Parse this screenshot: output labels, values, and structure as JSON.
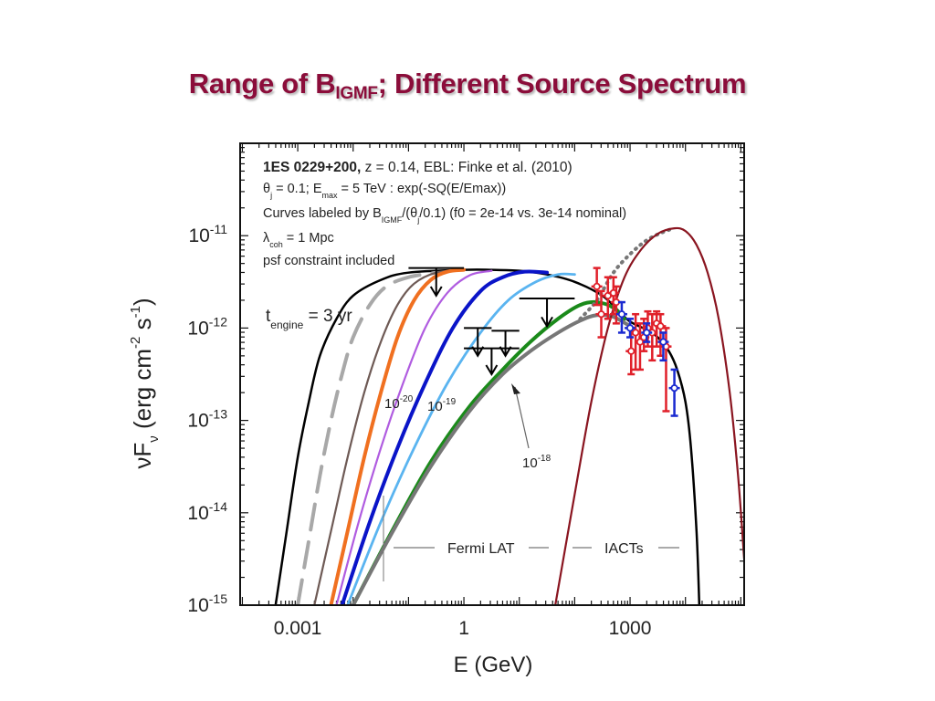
{
  "slide": {
    "title_main": "Range of B",
    "title_sub": "IGMF",
    "title_rest": "; Different Source Spectrum"
  },
  "chart_data": {
    "type": "line",
    "title": "",
    "xlabel": "E (GeV)",
    "ylabel_main": "νF",
    "ylabel_sub": "ν",
    "ylabel_units": " (erg cm",
    "ylabel_exp1": "-2",
    "ylabel_mid": " s",
    "ylabel_exp2": "-1",
    "ylabel_end": ")",
    "xscale": "log",
    "yscale": "log",
    "xlim_log10": [
      -4.04,
      5.06
    ],
    "ylim_log10": [
      -15,
      -10
    ],
    "x_ticks": [
      {
        "log10": -3,
        "label": "0.001"
      },
      {
        "log10": 0,
        "label": "1"
      },
      {
        "log10": 3,
        "label": "1000"
      }
    ],
    "y_ticks": [
      {
        "log10": -11,
        "base": "10",
        "exp": "-11"
      },
      {
        "log10": -12,
        "base": "10",
        "exp": "-12"
      },
      {
        "log10": -13,
        "base": "10",
        "exp": "-13"
      },
      {
        "log10": -14,
        "base": "10",
        "exp": "-14"
      },
      {
        "log10": -15,
        "base": "10",
        "exp": "-15"
      }
    ],
    "annotations": {
      "line1_bold": "1ES 0229+200,",
      "line1_rest": " z = 0.14,   EBL: Finke et al. (2010)",
      "line2_a": "θ",
      "line2_a_sub": "j",
      "line2_b": " = 0.1; E",
      "line2_b_sub": "max",
      "line2_c": " = 5 TeV : exp(-SQ(E/Emax))",
      "line3_a": "Curves labeled by B",
      "line3_a_sub": "IGMF",
      "line3_b": "/(θ",
      "line3_b_sub": "j",
      "line3_c": "/0.1)  (f0 = 2e-14 vs. 3e-14 nominal)",
      "line4_a": "λ",
      "line4_a_sub": "coh",
      "line4_b": " = 1 Mpc",
      "line5": "psf constraint included",
      "engine_a": "t",
      "engine_sub": "engine",
      "engine_b": " = 3 yr",
      "engine_color": "#e0306a",
      "label_m20_base": "10",
      "label_m20_exp": "-20",
      "label_m19_base": "10",
      "label_m19_exp": "-19",
      "label_m18_base": "10",
      "label_m18_exp": "-18",
      "fermi_label": "Fermi LAT",
      "iacts_label": "IACTs"
    },
    "series": [
      {
        "name": "B=1e-20 (envelope, black)",
        "color": "#000000",
        "width": 2.5,
        "dash": "",
        "points": [
          [
            -3.4,
            -15
          ],
          [
            -3.2,
            -14.2
          ],
          [
            -3.0,
            -13.4
          ],
          [
            -2.8,
            -12.8
          ],
          [
            -2.6,
            -12.3
          ],
          [
            -2.3,
            -11.9
          ],
          [
            -2.0,
            -11.65
          ],
          [
            -1.5,
            -11.48
          ],
          [
            -1.0,
            -11.4
          ],
          [
            0,
            -11.37
          ],
          [
            0.5,
            -11.37
          ],
          [
            1.0,
            -11.38
          ],
          [
            1.5,
            -11.42
          ],
          [
            2.0,
            -11.5
          ],
          [
            2.5,
            -11.65
          ],
          [
            2.8,
            -11.82
          ],
          [
            3.0,
            -11.93
          ],
          [
            3.3,
            -12.02
          ],
          [
            3.5,
            -12.1
          ],
          [
            3.7,
            -12.25
          ],
          [
            3.85,
            -12.45
          ],
          [
            4.0,
            -12.8
          ],
          [
            4.1,
            -13.3
          ],
          [
            4.2,
            -14.2
          ],
          [
            4.25,
            -15
          ]
        ]
      },
      {
        "name": "B=1e-20 (grey dashed)",
        "color": "#a8a8a8",
        "width": 4,
        "dash": "28 14",
        "points": [
          [
            -3.0,
            -15
          ],
          [
            -2.8,
            -14.3
          ],
          [
            -2.6,
            -13.6
          ],
          [
            -2.4,
            -13.0
          ],
          [
            -2.2,
            -12.5
          ],
          [
            -2.0,
            -12.1
          ],
          [
            -1.7,
            -11.75
          ],
          [
            -1.4,
            -11.55
          ],
          [
            -1.0,
            -11.45
          ],
          [
            -0.5,
            -11.4
          ]
        ]
      },
      {
        "name": "B=1e-19 (brown)",
        "color": "#6e5a55",
        "width": 2.2,
        "dash": "",
        "points": [
          [
            -2.7,
            -15
          ],
          [
            -2.4,
            -14.2
          ],
          [
            -2.1,
            -13.4
          ],
          [
            -1.8,
            -12.7
          ],
          [
            -1.5,
            -12.15
          ],
          [
            -1.2,
            -11.75
          ],
          [
            -0.9,
            -11.52
          ],
          [
            -0.5,
            -11.4
          ],
          [
            0,
            -11.37
          ]
        ]
      },
      {
        "name": "orange",
        "color": "#f07020",
        "width": 4,
        "dash": "",
        "points": [
          [
            -2.4,
            -15
          ],
          [
            -2.1,
            -14.2
          ],
          [
            -1.8,
            -13.4
          ],
          [
            -1.5,
            -12.7
          ],
          [
            -1.2,
            -12.1
          ],
          [
            -0.9,
            -11.7
          ],
          [
            -0.6,
            -11.48
          ],
          [
            -0.3,
            -11.39
          ],
          [
            0,
            -11.37
          ]
        ]
      },
      {
        "name": "purple",
        "color": "#b05ce0",
        "width": 2.2,
        "dash": "",
        "points": [
          [
            -2.3,
            -15
          ],
          [
            -1.9,
            -14.1
          ],
          [
            -1.5,
            -13.3
          ],
          [
            -1.1,
            -12.6
          ],
          [
            -0.7,
            -12.0
          ],
          [
            -0.3,
            -11.62
          ],
          [
            0.1,
            -11.43
          ],
          [
            0.5,
            -11.38
          ]
        ]
      },
      {
        "name": "blue",
        "color": "#0a14c8",
        "width": 4,
        "dash": "",
        "points": [
          [
            -2.2,
            -15
          ],
          [
            -1.7,
            -14.1
          ],
          [
            -1.2,
            -13.3
          ],
          [
            -0.7,
            -12.6
          ],
          [
            -0.2,
            -12.0
          ],
          [
            0.3,
            -11.6
          ],
          [
            0.7,
            -11.45
          ],
          [
            1.1,
            -11.39
          ],
          [
            1.5,
            -11.4
          ]
        ]
      },
      {
        "name": "light blue",
        "color": "#5ab4f0",
        "width": 2.8,
        "dash": "",
        "points": [
          [
            -2.1,
            -15
          ],
          [
            -1.5,
            -14.1
          ],
          [
            -0.9,
            -13.3
          ],
          [
            -0.3,
            -12.6
          ],
          [
            0.3,
            -12.05
          ],
          [
            0.8,
            -11.7
          ],
          [
            1.3,
            -11.5
          ],
          [
            1.7,
            -11.42
          ],
          [
            2.0,
            -11.42
          ]
        ]
      },
      {
        "name": "B=1e-18 (green)",
        "color": "#1a8a1a",
        "width": 4,
        "dash": "",
        "points": [
          [
            -2.0,
            -15
          ],
          [
            -1.3,
            -14.2
          ],
          [
            -0.6,
            -13.45
          ],
          [
            0.1,
            -12.85
          ],
          [
            0.7,
            -12.45
          ],
          [
            1.2,
            -12.15
          ],
          [
            1.7,
            -11.9
          ],
          [
            2.1,
            -11.75
          ],
          [
            2.4,
            -11.72
          ],
          [
            2.7,
            -11.78
          ],
          [
            2.9,
            -11.9
          ]
        ]
      },
      {
        "name": "grey (bottom)",
        "color": "#777777",
        "width": 4,
        "dash": "",
        "points": [
          [
            -2.0,
            -15
          ],
          [
            -1.3,
            -14.22
          ],
          [
            -0.6,
            -13.5
          ],
          [
            0.1,
            -12.9
          ],
          [
            0.7,
            -12.5
          ],
          [
            1.2,
            -12.25
          ],
          [
            1.7,
            -12.05
          ],
          [
            2.1,
            -11.92
          ],
          [
            2.4,
            -11.86
          ],
          [
            2.7,
            -11.88
          ],
          [
            3.0,
            -11.98
          ]
        ]
      },
      {
        "name": "intrinsic (dotted grey)",
        "color": "#777777",
        "width": 4,
        "dash": "1 6",
        "points": [
          [
            2.1,
            -11.9
          ],
          [
            2.4,
            -11.7
          ],
          [
            2.7,
            -11.4
          ],
          [
            3.0,
            -11.2
          ],
          [
            3.3,
            -11.05
          ],
          [
            3.6,
            -10.96
          ],
          [
            3.8,
            -10.92
          ]
        ]
      },
      {
        "name": "intrinsic (dark red)",
        "color": "#8a1520",
        "width": 2.2,
        "dash": "",
        "points": [
          [
            1.65,
            -15
          ],
          [
            2.0,
            -13.8
          ],
          [
            2.3,
            -12.8
          ],
          [
            2.6,
            -12.0
          ],
          [
            2.9,
            -11.45
          ],
          [
            3.2,
            -11.15
          ],
          [
            3.5,
            -10.98
          ],
          [
            3.8,
            -10.92
          ],
          [
            4.0,
            -10.95
          ],
          [
            4.2,
            -11.1
          ],
          [
            4.4,
            -11.4
          ],
          [
            4.6,
            -11.9
          ],
          [
            4.8,
            -12.7
          ],
          [
            4.95,
            -13.6
          ],
          [
            5.06,
            -14.5
          ]
        ]
      }
    ],
    "upper_limits": [
      {
        "x_lo": -1.0,
        "x_hi": 0.0,
        "y": -11.35,
        "arrow_x": -0.5,
        "arrow_to": -11.65
      },
      {
        "x_lo": 0.0,
        "x_hi": 0.5,
        "y": -12.0,
        "arrow_x": 0.25,
        "arrow_to": -12.3
      },
      {
        "x_lo": 0.5,
        "x_hi": 1.0,
        "y": -12.03,
        "arrow_x": 0.75,
        "arrow_to": -12.3
      },
      {
        "x_lo": 0.0,
        "x_hi": 1.0,
        "y": -12.22,
        "arrow_x": 0.5,
        "arrow_to": -12.5
      },
      {
        "x_lo": 1.0,
        "x_hi": 2.0,
        "y": -11.68,
        "arrow_x": 1.5,
        "arrow_to": -11.98
      }
    ],
    "data_points_red": [
      [
        2.4,
        -11.55,
        -11.35,
        -11.75
      ],
      [
        2.6,
        -11.65,
        -11.45,
        -11.9
      ],
      [
        2.7,
        -11.62,
        -11.45,
        -11.85
      ],
      [
        2.48,
        -11.85,
        -11.6,
        -12.1
      ],
      [
        2.75,
        -11.72,
        -11.55,
        -11.95
      ],
      [
        3.1,
        -12.05,
        -11.85,
        -12.45
      ],
      [
        3.18,
        -12.15,
        -11.95,
        -12.45
      ],
      [
        3.25,
        -12.1,
        -11.9,
        -12.25
      ],
      [
        3.32,
        -12.0,
        -11.82,
        -12.2
      ],
      [
        3.4,
        -12.05,
        -11.85,
        -12.35
      ],
      [
        3.48,
        -11.95,
        -11.82,
        -12.2
      ],
      [
        3.55,
        -11.98,
        -11.85,
        -12.3
      ],
      [
        3.65,
        -12.2,
        -12.0,
        -12.9
      ],
      [
        3.02,
        -12.25,
        -12.0,
        -12.5
      ]
    ],
    "data_points_blue": [
      [
        2.85,
        -11.85,
        -11.72,
        -12.05
      ],
      [
        3.0,
        -12.0,
        -11.9,
        -12.1
      ],
      [
        3.3,
        -12.05,
        -11.95,
        -12.15
      ],
      [
        3.6,
        -12.15,
        -12.05,
        -12.35
      ],
      [
        3.8,
        -12.65,
        -12.45,
        -12.95
      ]
    ]
  }
}
